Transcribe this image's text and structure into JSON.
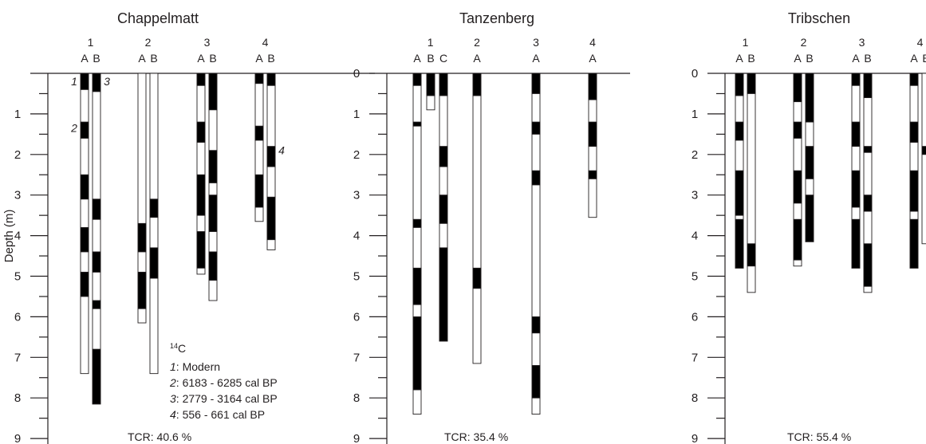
{
  "y_axis_label": "Depth (m)",
  "colors": {
    "black_segment": "#000000",
    "white_segment": "#ffffff",
    "ink": "#231f20"
  },
  "chart_data": {
    "type": "core-log",
    "depth_unit": "m",
    "depth_range": [
      0,
      9
    ],
    "panels": [
      {
        "title": "Chappelmatt",
        "tcr_text": "TCR: 40.6 %",
        "show_zero_tick": false,
        "groups": [
          {
            "label": "1",
            "cores": [
              {
                "label": "A",
                "bottom": 7.4,
                "black": [
                  [
                    0,
                    0.4
                  ],
                  [
                    1.2,
                    1.6
                  ],
                  [
                    2.5,
                    3.1
                  ],
                  [
                    3.8,
                    4.4
                  ],
                  [
                    4.9,
                    5.5
                  ]
                ]
              },
              {
                "label": "B",
                "bottom": 8.15,
                "black": [
                  [
                    0,
                    0.45
                  ],
                  [
                    3.1,
                    3.6
                  ],
                  [
                    4.4,
                    4.9
                  ],
                  [
                    5.6,
                    5.8
                  ],
                  [
                    6.8,
                    8.15
                  ]
                ]
              }
            ]
          },
          {
            "label": "2",
            "cores": [
              {
                "label": "A",
                "bottom": 6.15,
                "black": [
                  [
                    3.7,
                    4.4
                  ],
                  [
                    4.9,
                    5.8
                  ]
                ]
              },
              {
                "label": "B",
                "bottom": 7.4,
                "black": [
                  [
                    3.1,
                    3.55
                  ],
                  [
                    4.3,
                    5.05
                  ]
                ]
              }
            ]
          },
          {
            "label": "3",
            "cores": [
              {
                "label": "A",
                "bottom": 4.95,
                "black": [
                  [
                    0,
                    0.3
                  ],
                  [
                    1.2,
                    1.7
                  ],
                  [
                    2.5,
                    3.5
                  ],
                  [
                    3.9,
                    4.8
                  ]
                ]
              },
              {
                "label": "B",
                "bottom": 5.6,
                "black": [
                  [
                    0,
                    0.9
                  ],
                  [
                    1.9,
                    2.7
                  ],
                  [
                    3.0,
                    3.9
                  ],
                  [
                    4.4,
                    5.1
                  ]
                ]
              }
            ]
          },
          {
            "label": "4",
            "cores": [
              {
                "label": "A",
                "bottom": 3.65,
                "black": [
                  [
                    0,
                    0.25
                  ],
                  [
                    1.3,
                    1.65
                  ],
                  [
                    2.5,
                    3.3
                  ]
                ]
              },
              {
                "label": "B",
                "bottom": 4.35,
                "black": [
                  [
                    0,
                    0.3
                  ],
                  [
                    1.8,
                    2.3
                  ],
                  [
                    3.05,
                    4.1
                  ]
                ]
              }
            ]
          }
        ],
        "markers": [
          {
            "text": "1",
            "group": 0,
            "core": 0,
            "side": "left",
            "depth": 0.2
          },
          {
            "text": "2",
            "group": 0,
            "core": 0,
            "side": "left",
            "depth": 1.35
          },
          {
            "text": "3",
            "group": 0,
            "core": 1,
            "side": "right",
            "depth": 0.2
          },
          {
            "text": "4",
            "group": 3,
            "core": 1,
            "side": "right",
            "depth": 1.9
          }
        ],
        "legend": {
          "heading": "14C",
          "heading_sup": "14",
          "heading_main": "C",
          "entries": [
            {
              "num": "1",
              "text": ": Modern"
            },
            {
              "num": "2",
              "text": ": 6183 - 6285 cal BP"
            },
            {
              "num": "3",
              "text": ": 2779 - 3164 cal BP"
            },
            {
              "num": "4",
              "text": ": 556 - 661 cal BP"
            }
          ]
        }
      },
      {
        "title": "Tanzenberg",
        "tcr_text": "TCR: 35.4 %",
        "show_zero_tick": true,
        "groups": [
          {
            "label": "1",
            "cores": [
              {
                "label": "A",
                "bottom": 8.4,
                "black": [
                  [
                    0,
                    0.3
                  ],
                  [
                    1.2,
                    1.3
                  ],
                  [
                    3.6,
                    3.8
                  ],
                  [
                    4.8,
                    5.7
                  ],
                  [
                    6.0,
                    7.8
                  ]
                ]
              },
              {
                "label": "B",
                "bottom": 0.9,
                "black": [
                  [
                    0,
                    0.55
                  ]
                ]
              },
              {
                "label": "C",
                "bottom": 6.6,
                "black": [
                  [
                    0,
                    0.55
                  ],
                  [
                    1.8,
                    2.3
                  ],
                  [
                    3.0,
                    3.7
                  ],
                  [
                    4.3,
                    6.6
                  ]
                ]
              }
            ]
          },
          {
            "label": "2",
            "cores": [
              {
                "label": "A",
                "bottom": 7.15,
                "black": [
                  [
                    0,
                    0.55
                  ],
                  [
                    4.8,
                    5.3
                  ]
                ]
              }
            ]
          },
          {
            "label": "3",
            "cores": [
              {
                "label": "A",
                "bottom": 8.4,
                "black": [
                  [
                    0,
                    0.5
                  ],
                  [
                    1.2,
                    1.5
                  ],
                  [
                    2.4,
                    2.75
                  ],
                  [
                    6.0,
                    6.4
                  ],
                  [
                    7.2,
                    8.0
                  ]
                ]
              }
            ]
          },
          {
            "label": "4",
            "cores": [
              {
                "label": "A",
                "bottom": 3.55,
                "black": [
                  [
                    0,
                    0.65
                  ],
                  [
                    1.2,
                    1.8
                  ],
                  [
                    2.4,
                    2.6
                  ]
                ]
              }
            ]
          }
        ],
        "markers": []
      },
      {
        "title": "Tribschen",
        "tcr_text": "TCR: 55.4 %",
        "show_zero_tick": true,
        "groups": [
          {
            "label": "1",
            "cores": [
              {
                "label": "A",
                "bottom": 4.8,
                "black": [
                  [
                    0,
                    0.55
                  ],
                  [
                    1.2,
                    1.65
                  ],
                  [
                    2.4,
                    3.5
                  ],
                  [
                    3.6,
                    4.8
                  ]
                ]
              },
              {
                "label": "B",
                "bottom": 5.4,
                "black": [
                  [
                    0,
                    0.5
                  ],
                  [
                    4.2,
                    4.75
                  ]
                ]
              }
            ]
          },
          {
            "label": "2",
            "cores": [
              {
                "label": "A",
                "bottom": 4.75,
                "black": [
                  [
                    0,
                    0.7
                  ],
                  [
                    1.2,
                    1.6
                  ],
                  [
                    2.4,
                    3.2
                  ],
                  [
                    3.6,
                    4.6
                  ]
                ]
              },
              {
                "label": "B",
                "bottom": 4.15,
                "black": [
                  [
                    0,
                    1.2
                  ],
                  [
                    1.8,
                    2.6
                  ],
                  [
                    3.0,
                    4.15
                  ]
                ]
              }
            ]
          },
          {
            "label": "3",
            "cores": [
              {
                "label": "A",
                "bottom": 4.8,
                "black": [
                  [
                    0,
                    0.3
                  ],
                  [
                    1.2,
                    1.8
                  ],
                  [
                    2.4,
                    3.3
                  ],
                  [
                    3.6,
                    4.8
                  ]
                ]
              },
              {
                "label": "B",
                "bottom": 5.4,
                "black": [
                  [
                    0,
                    0.6
                  ],
                  [
                    1.8,
                    1.95
                  ],
                  [
                    3.0,
                    3.4
                  ],
                  [
                    4.2,
                    5.25
                  ]
                ]
              }
            ]
          },
          {
            "label": "4",
            "cores": [
              {
                "label": "A",
                "bottom": 4.8,
                "black": [
                  [
                    0,
                    0.3
                  ],
                  [
                    1.2,
                    1.7
                  ],
                  [
                    2.4,
                    3.4
                  ],
                  [
                    3.6,
                    4.8
                  ]
                ]
              },
              {
                "label": "B",
                "bottom": 4.2,
                "black": [
                  [
                    1.8,
                    2.0
                  ]
                ]
              }
            ]
          }
        ],
        "markers": []
      }
    ]
  }
}
